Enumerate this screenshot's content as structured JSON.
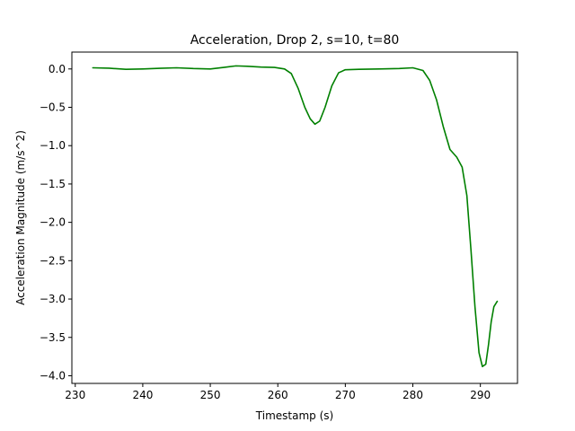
{
  "chart_data": {
    "type": "line",
    "title": "Acceleration, Drop 2, s=10, t=80",
    "xlabel": "Timestamp (s)",
    "ylabel": "Acceleration Magnitude (m/s^2)",
    "xlim": [
      229.5,
      295.5
    ],
    "ylim": [
      -4.1,
      0.22
    ],
    "xticks": [
      230,
      240,
      250,
      260,
      270,
      280,
      290
    ],
    "yticks": [
      0.0,
      -0.5,
      -1.0,
      -1.5,
      -2.0,
      -2.5,
      -3.0,
      -3.5,
      -4.0
    ],
    "ytick_labels": [
      "0.0",
      "−0.5",
      "−1.0",
      "−1.5",
      "−2.0",
      "−2.5",
      "−3.0",
      "−3.5",
      "−4.0"
    ],
    "grid": false,
    "series": [
      {
        "color": "#008000",
        "x": [
          232.6,
          235.0,
          237.5,
          240.0,
          242.5,
          245.0,
          247.5,
          250.0,
          252.0,
          253.8,
          255.5,
          257.5,
          259.5,
          261.0,
          262.0,
          263.0,
          264.0,
          264.8,
          265.5,
          266.2,
          267.0,
          268.0,
          269.0,
          270.0,
          272.0,
          275.0,
          278.0,
          280.0,
          281.5,
          282.5,
          283.5,
          284.5,
          285.5,
          286.5,
          287.3,
          288.0,
          288.6,
          289.2,
          289.8,
          290.3,
          290.8,
          291.2,
          291.6,
          292.0,
          292.5
        ],
        "y": [
          0.015,
          0.01,
          -0.005,
          0.0,
          0.008,
          0.015,
          0.005,
          0.0,
          0.02,
          0.04,
          0.035,
          0.025,
          0.02,
          0.0,
          -0.06,
          -0.25,
          -0.5,
          -0.65,
          -0.72,
          -0.68,
          -0.5,
          -0.22,
          -0.05,
          -0.01,
          -0.005,
          0.0,
          0.005,
          0.015,
          -0.02,
          -0.15,
          -0.4,
          -0.75,
          -1.05,
          -1.15,
          -1.28,
          -1.65,
          -2.35,
          -3.1,
          -3.7,
          -3.88,
          -3.85,
          -3.6,
          -3.3,
          -3.1,
          -3.03
        ]
      }
    ]
  }
}
